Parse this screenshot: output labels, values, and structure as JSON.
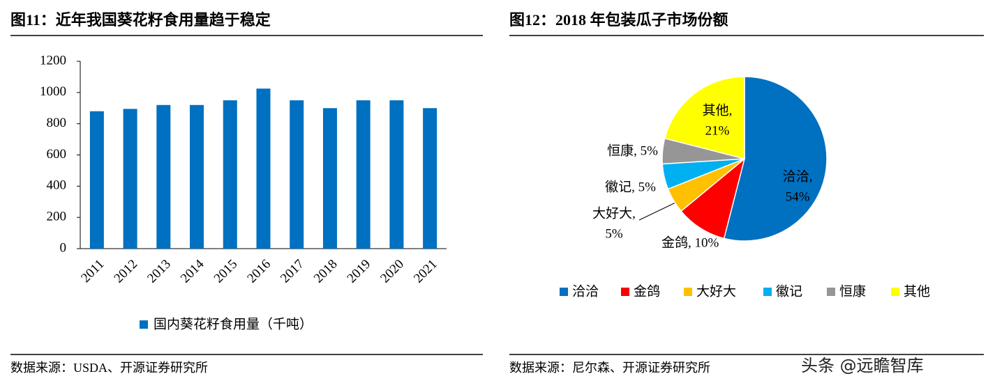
{
  "chart_data": [
    {
      "type": "bar",
      "title": "图11：近年我国葵花籽食用量趋于稳定",
      "categories": [
        "2011",
        "2012",
        "2013",
        "2014",
        "2015",
        "2016",
        "2017",
        "2018",
        "2019",
        "2020",
        "2021"
      ],
      "series": [
        {
          "name": "国内葵花籽食用量（千吨）",
          "color": "#0070c0",
          "values": [
            880,
            895,
            920,
            920,
            950,
            1025,
            950,
            900,
            950,
            950,
            900
          ]
        }
      ],
      "ylim": [
        0,
        1200
      ],
      "yticks": [
        0,
        200,
        400,
        600,
        800,
        1000,
        1200
      ],
      "legend": "bottom",
      "source": "数据来源：USDA、开源证券研究所"
    },
    {
      "type": "pie",
      "title": "图12：2018 年包装瓜子市场份额",
      "categories": [
        "洽洽",
        "金鸽",
        "大好大",
        "徽记",
        "恒康",
        "其他"
      ],
      "values": [
        54,
        10,
        5,
        5,
        5,
        21
      ],
      "value_labels": [
        [
          "洽洽,",
          "54%"
        ],
        [
          "金鸽, 10%"
        ],
        [
          "大好大,",
          "5%"
        ],
        [
          "徽记, 5%"
        ],
        [
          "恒康, 5%"
        ],
        [
          "其他,",
          "21%"
        ]
      ],
      "colors": [
        "#0070c0",
        "#ff0000",
        "#ffc000",
        "#00b0f0",
        "#969696",
        "#ffff00"
      ],
      "legend": "bottom",
      "source": "数据来源：尼尔森、开源证券研究所"
    }
  ],
  "watermark": "头条 @远瞻智库"
}
